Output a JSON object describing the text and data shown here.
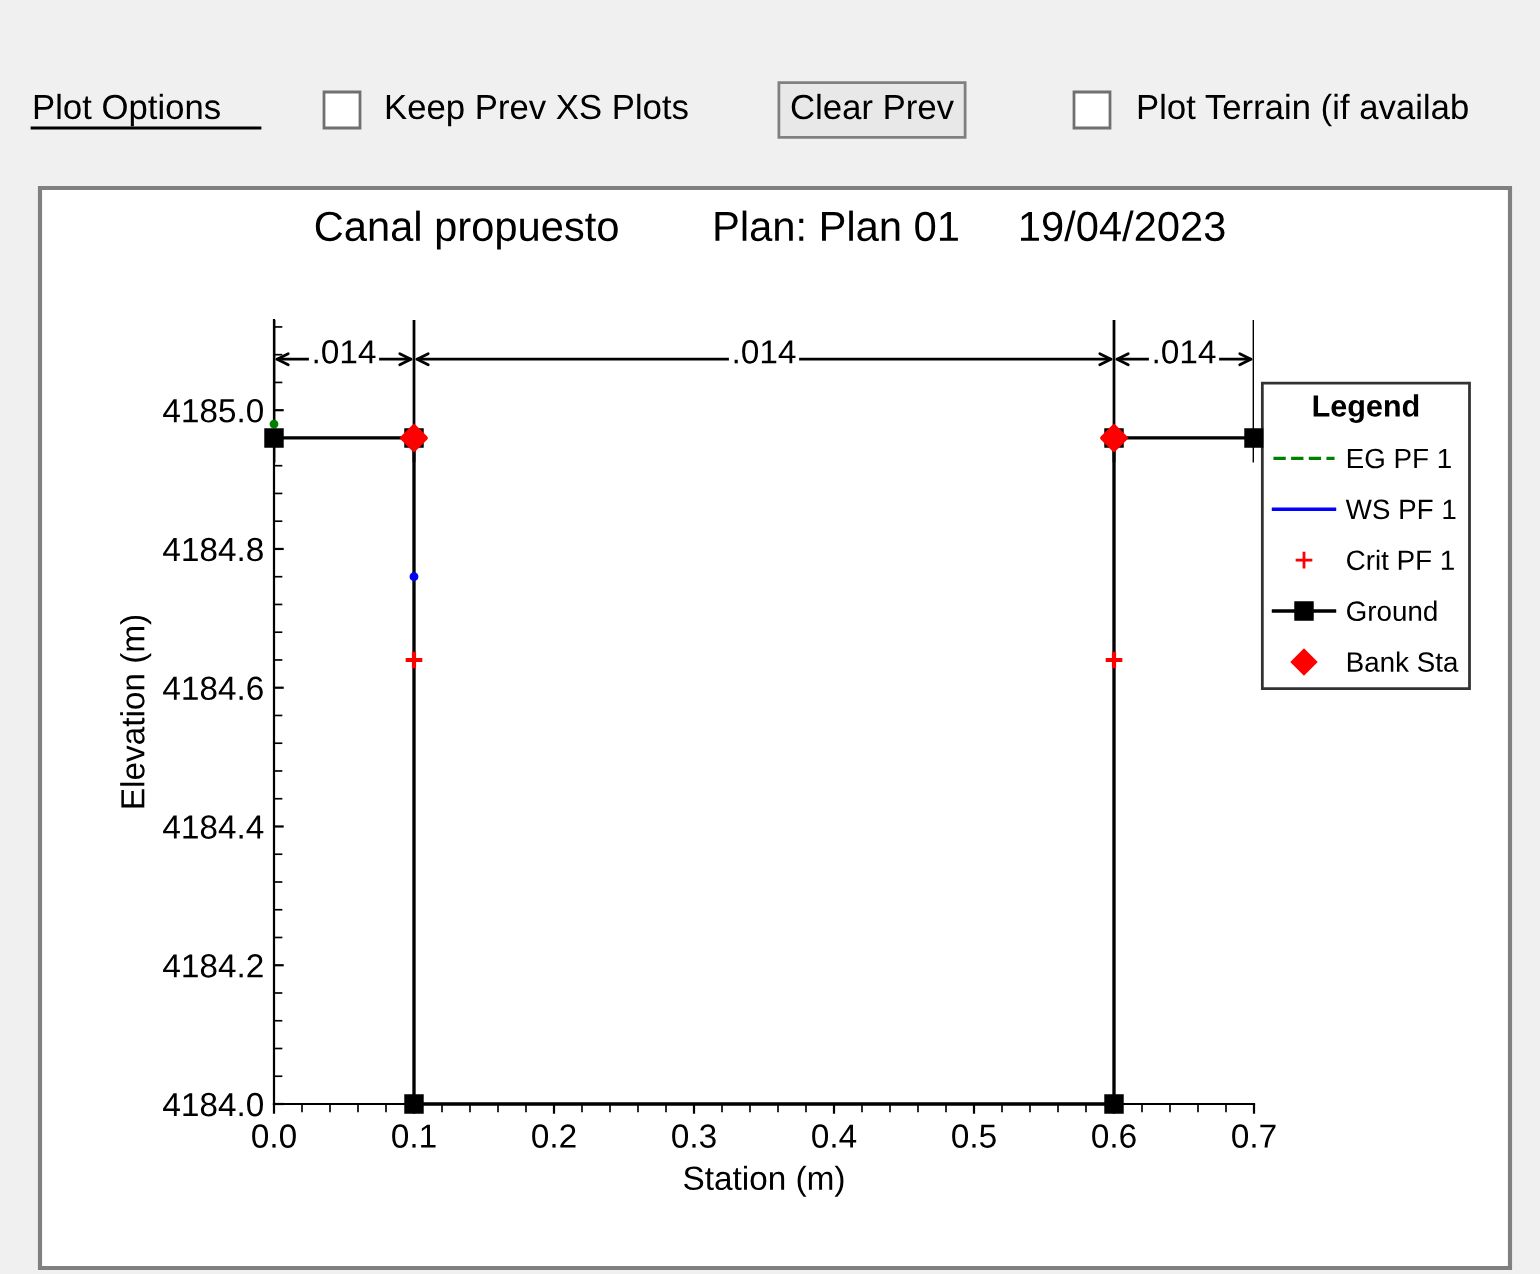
{
  "chart_data": {
    "type": "line",
    "title": "Canal propuesto        Plan: Plan 01     19/04/2023",
    "xlabel": "Station (m)",
    "ylabel": "Elevation (m)",
    "legend_title": "Legend",
    "legend": "right",
    "subtitle": [
      "Plot Options",
      "Keep Prev XS Plots",
      "Clear Prev",
      "Plot Terrain (if availab"
    ],
    "xlim": [
      0.0,
      0.7
    ],
    "ylim": [
      4184.0,
      4185.13
    ],
    "xticks": [
      {
        "value": 0.0,
        "label": "0.0"
      },
      0.1,
      0.2,
      0.3,
      0.4,
      0.5,
      0.6,
      0.7
    ],
    "yticks": [
      {
        "value": 4184.0,
        "label": "4184.0"
      },
      4184.2,
      4184.4,
      4184.6,
      4184.8,
      {
        "value": 4185.0,
        "label": "4185.0"
      }
    ],
    "grid": false,
    "ref_lines": [
      {
        "axis": "x",
        "value": 0.0
      },
      {
        "axis": "x",
        "value": 0.1
      },
      {
        "axis": "x",
        "value": 0.6
      },
      {
        "axis": "x",
        "value": 0.7
      }
    ],
    "annotations": [
      {
        "text": ".014",
        "x": 0.05,
        "y": 4185.08
      },
      {
        "text": ".014",
        "x": 0.35,
        "y": 4185.08
      },
      {
        "text": ".014",
        "x": 0.65,
        "y": 4185.08
      }
    ],
    "series": [
      {
        "name": "EG PF 1",
        "type": "scatter",
        "color": "#008000",
        "line_style": "dashed",
        "x": [
          0.0
        ],
        "values": [
          4184.98
        ]
      },
      {
        "name": "WS PF 1",
        "type": "scatter",
        "color": "#0000ff",
        "line_style": "solid",
        "x": [
          0.1
        ],
        "values": [
          4184.76
        ]
      },
      {
        "name": "Crit PF 1",
        "type": "scatter",
        "color": "#ff0000",
        "marker": "cross",
        "x": [
          0.1,
          0.6
        ],
        "values": [
          4184.64,
          4184.64
        ]
      },
      {
        "name": "Ground",
        "color": "#000000",
        "line_style": "solid",
        "marker": "square",
        "x": [
          0.0,
          0.1,
          0.1,
          0.6,
          0.6,
          0.7
        ],
        "values": [
          4184.96,
          4184.96,
          4184.0,
          4184.0,
          4184.96,
          4184.96
        ]
      },
      {
        "name": "Bank Sta",
        "type": "scatter",
        "color": "#ff0000",
        "marker": "diamond",
        "x": [
          0.1,
          0.6
        ],
        "values": [
          4184.96,
          4184.96
        ]
      }
    ]
  }
}
